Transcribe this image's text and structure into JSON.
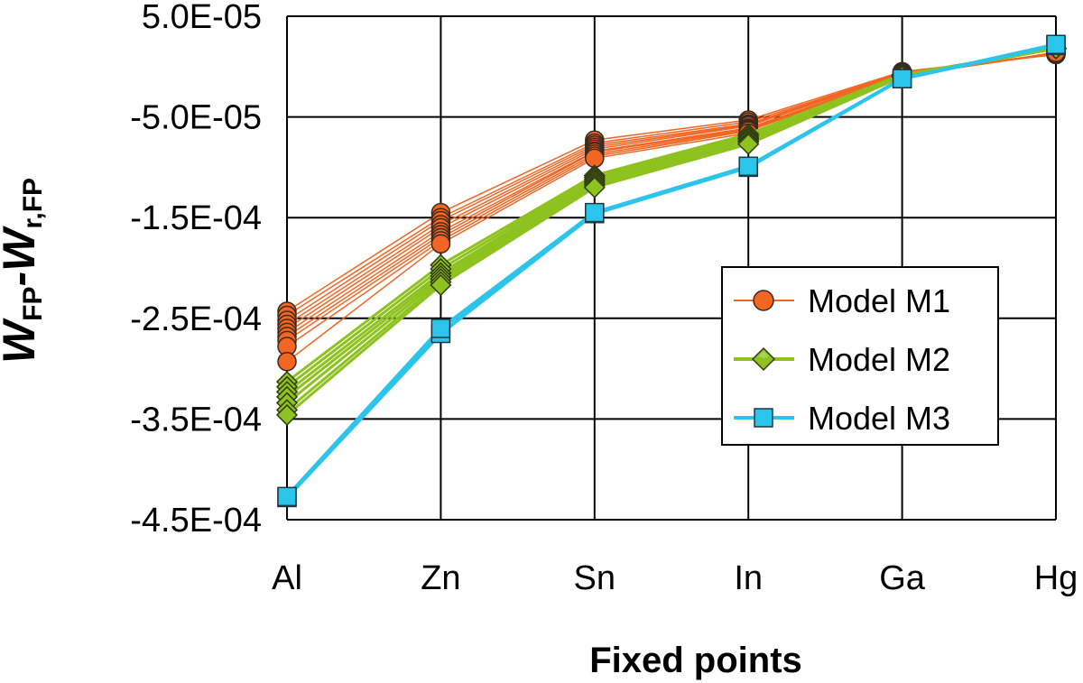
{
  "chart_data": {
    "type": "line",
    "xlabel": "Fixed points",
    "ylabel": "W_FP-W_r,FP",
    "ylabel_parts": {
      "w1": "W",
      "sub1": "FP",
      "dash": "-",
      "w2": "W",
      "sub2": "r,FP"
    },
    "categories": [
      "Al",
      "Zn",
      "Sn",
      "In",
      "Ga",
      "Hg"
    ],
    "ylim": [
      -0.00045,
      5e-05
    ],
    "yticks": [
      5e-05,
      -5e-05,
      -0.00015,
      -0.00025,
      -0.00035,
      -0.00045
    ],
    "ytick_labels": [
      "5.0E-05",
      "-5.0E-05",
      "-1.5E-04",
      "-2.5E-04",
      "-3.5E-04",
      "-4.5E-04"
    ],
    "grid": true,
    "legend_position": "right",
    "colors": {
      "m1": "#F26522",
      "m2": "#8DC21F",
      "m3": "#2BC4EA"
    },
    "groups": [
      {
        "name": "Model M1",
        "marker": "circle",
        "color": "#F26522",
        "series": [
          [
            -0.000243,
            -0.000145,
            -7.3e-05,
            -5.3e-05,
            -5e-06,
            1.2e-05
          ],
          [
            -0.000247,
            -0.00015,
            -7.6e-05,
            -5.5e-05,
            -6e-06,
            1.2e-05
          ],
          [
            -0.000252,
            -0.000153,
            -7.8e-05,
            -5.7e-05,
            -6e-06,
            1.3e-05
          ],
          [
            -0.000256,
            -0.000157,
            -8e-05,
            -5.8e-05,
            -7e-06,
            1.3e-05
          ],
          [
            -0.00026,
            -0.00016,
            -8.2e-05,
            -5.9e-05,
            -7e-06,
            1.3e-05
          ],
          [
            -0.000264,
            -0.000164,
            -8.4e-05,
            -6.1e-05,
            -8e-06,
            1.3e-05
          ],
          [
            -0.000268,
            -0.000167,
            -8.5e-05,
            -6.2e-05,
            -8e-06,
            1.3e-05
          ],
          [
            -0.000272,
            -0.00017,
            -8.7e-05,
            -6.3e-05,
            -9e-06,
            1.3e-05
          ],
          [
            -0.000278,
            -0.000173,
            -8.9e-05,
            -6.4e-05,
            -9e-06,
            1.4e-05
          ],
          [
            -0.000293,
            -0.000176,
            -9.1e-05,
            -6.6e-05,
            -1e-05,
            1.4e-05
          ]
        ]
      },
      {
        "name": "Model M2",
        "marker": "diamond",
        "color": "#8DC21F",
        "series": [
          [
            -0.000313,
            -0.000197,
            -0.000108,
            -6.7e-05,
            -8e-06,
            1.8e-05
          ],
          [
            -0.000318,
            -0.000201,
            -0.00011,
            -6.9e-05,
            -9e-06,
            1.8e-05
          ],
          [
            -0.000323,
            -0.000205,
            -0.000112,
            -7.1e-05,
            -9e-06,
            1.8e-05
          ],
          [
            -0.000328,
            -0.000208,
            -0.000114,
            -7.2e-05,
            -9e-06,
            1.8e-05
          ],
          [
            -0.000334,
            -0.000211,
            -0.000116,
            -7.4e-05,
            -1e-05,
            1.8e-05
          ],
          [
            -0.000341,
            -0.000214,
            -0.000118,
            -7.5e-05,
            -1e-05,
            1.8e-05
          ],
          [
            -0.000346,
            -0.000217,
            -0.00012,
            -7.7e-05,
            -1e-05,
            1.8e-05
          ]
        ]
      },
      {
        "name": "Model M3",
        "marker": "square",
        "color": "#2BC4EA",
        "series": [
          [
            -0.000428,
            -0.000265,
            -0.000146,
            -0.0001,
            -1.2e-05,
            2.1e-05
          ],
          [
            -0.000427,
            -0.00026,
            -0.000145,
            -9.9e-05,
            -1.2e-05,
            2.2e-05
          ]
        ]
      }
    ]
  }
}
